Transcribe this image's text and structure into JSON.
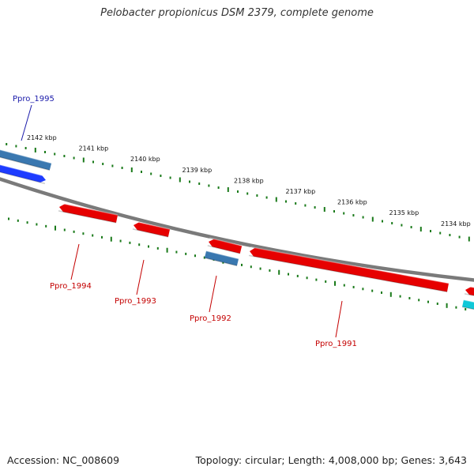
{
  "title": "Pelobacter propionicus DSM 2379, complete genome",
  "footer": {
    "accession": "Accession: NC_008609",
    "summary": "Topology: circular; Length: 4,008,000 bp; Genes: 3,643"
  },
  "colors": {
    "backbone": "#808080",
    "tick": "#1a7a1a",
    "forward_gene": "#1e3cff",
    "reverse_gene": "#e60000",
    "rna_gene": "#3a78b0",
    "other_gene": "#10c8d8",
    "forward_label": "#1a1aaa",
    "reverse_label": "#c40000"
  },
  "scale_ticks": [
    {
      "label": "2142 kbp",
      "kbp": 2142
    },
    {
      "label": "2141 kbp",
      "kbp": 2141
    },
    {
      "label": "2140 kbp",
      "kbp": 2140
    },
    {
      "label": "2139 kbp",
      "kbp": 2139
    },
    {
      "label": "2138 kbp",
      "kbp": 2138
    },
    {
      "label": "2137 kbp",
      "kbp": 2137
    },
    {
      "label": "2136 kbp",
      "kbp": 2136
    },
    {
      "label": "2135 kbp",
      "kbp": 2135
    },
    {
      "label": "2134 kbp",
      "kbp": 2134
    }
  ],
  "gene_labels": [
    {
      "name": "Ppro_1995",
      "strand": "forward"
    },
    {
      "name": "Ppro_1994",
      "strand": "reverse"
    },
    {
      "name": "Ppro_1993",
      "strand": "reverse"
    },
    {
      "name": "Ppro_1992",
      "strand": "reverse"
    },
    {
      "name": "Ppro_1991",
      "strand": "reverse"
    }
  ]
}
